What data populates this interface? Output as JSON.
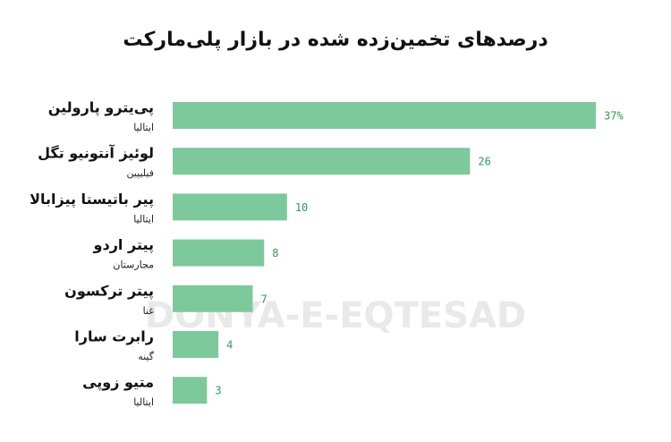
{
  "chart_data": {
    "type": "bar",
    "orientation": "horizontal",
    "title": "درصدهای تخمین‌زده شده در بازار پلی‌مارکت",
    "categories": [
      "پی‌یترو پارولین",
      "لوئیز آنتونیو تگل",
      "پیر باتیستا پیزابالا",
      "پیتر اردو",
      "پیتر ترکسون",
      "رابرت سارا",
      "متیو زوپی"
    ],
    "category_details": [
      "ایتالیا",
      "فیلیپین",
      "ایتالیا",
      "مجارستان",
      "غنا",
      "گینه",
      "ایتالیا"
    ],
    "values": [
      37,
      26,
      10,
      8,
      7,
      4,
      3
    ],
    "value_labels": [
      "37%",
      "26",
      "10",
      "8",
      "7",
      "4",
      "3"
    ],
    "color": "#7ec99c",
    "label_color": "#2e9a58",
    "watermark": "DONYA-E-EQTESAD"
  }
}
